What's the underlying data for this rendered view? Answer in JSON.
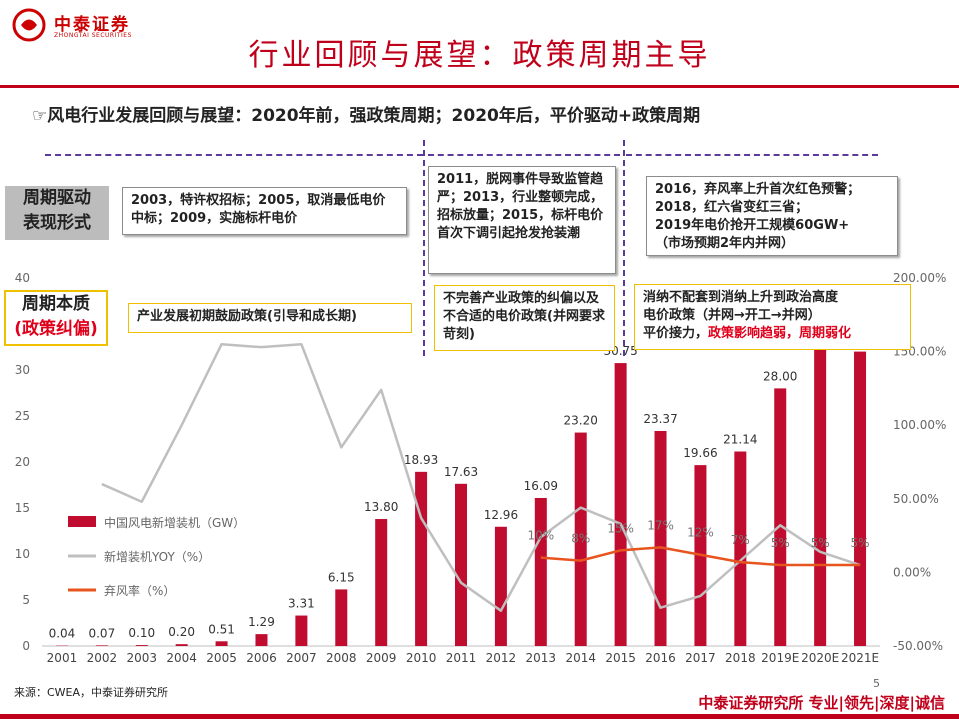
{
  "header": {
    "logo_cn": "中泰证券",
    "logo_en": "ZHONGTAI SECURITIES",
    "title": "行业回顾与展望：政策周期主导",
    "subtitle": "☞风电行业发展回顾与展望：2020年前，强政策周期；2020年后，平价驱动+政策周期"
  },
  "labels": {
    "driver": "周期驱动\n表现形式",
    "essence_1": "周期本质",
    "essence_2": "(政策纠偏)"
  },
  "boxes": {
    "driver_1": "2003，特许权招标；2005，取消最低电价中标；2009，实施标杆电价",
    "driver_2": "2011，脱网事件导致监管趋严；2013，行业整顿完成，招标放量；2015，标杆电价首次下调引起抢发抢装潮",
    "driver_3_a": "2016，弃风率上升首次红色预警；",
    "driver_3_b": "2018，红六省变红三省；",
    "driver_3_c": "2019年电价抢开工规模60GW+",
    "driver_3_d": "（市场预期2年内并网）",
    "essence_1": "产业发展初期鼓励政策(引导和成长期)",
    "essence_2": "不完善产业政策的纠偏以及不合适的电价政策(并网要求苛刻)",
    "essence_3_a": "消纳不配套到消纳上升到政治高度",
    "essence_3_b": "电价政策（并网→开工→并网）",
    "essence_3_c": "平价接力，",
    "essence_3_d": "政策影响趋弱，周期弱化"
  },
  "chart_data": {
    "type": "bar",
    "categories": [
      "2001",
      "2002",
      "2003",
      "2004",
      "2005",
      "2006",
      "2007",
      "2008",
      "2009",
      "2010",
      "2011",
      "2012",
      "2013",
      "2014",
      "2015",
      "2016",
      "2017",
      "2018",
      "2019E",
      "2020E",
      "2021E"
    ],
    "series": [
      {
        "name": "中国风电新增装机（GW）",
        "type": "bar",
        "axis": "left",
        "color": "#c00c2e",
        "values": [
          0.04,
          0.07,
          0.1,
          0.2,
          0.51,
          1.29,
          3.31,
          6.15,
          13.8,
          18.93,
          17.63,
          12.96,
          16.09,
          23.2,
          30.75,
          23.37,
          19.66,
          21.14,
          28.0,
          35.0,
          32.0
        ],
        "labels": [
          "0.04",
          "0.07",
          "0.10",
          "0.20",
          "0.51",
          "1.29",
          "3.31",
          "6.15",
          "13.80",
          "18.93",
          "17.63",
          "12.96",
          "16.09",
          "23.20",
          "30.75",
          "23.37",
          "19.66",
          "21.14",
          "28.00",
          "",
          ""
        ]
      },
      {
        "name": "新增装机YOY（%）",
        "type": "line",
        "axis": "right",
        "color": "#bfbfbf",
        "values": [
          null,
          60,
          48,
          100,
          155,
          153,
          155,
          85,
          124,
          37,
          -7,
          -26,
          24,
          44,
          33,
          -24,
          -16,
          8,
          32,
          14,
          5
        ]
      },
      {
        "name": "弃风率（%）",
        "type": "line",
        "axis": "right",
        "color": "#e8541e",
        "values": [
          null,
          null,
          null,
          null,
          null,
          null,
          null,
          null,
          null,
          null,
          null,
          null,
          10,
          8,
          15,
          17,
          12,
          7,
          5,
          5,
          5
        ],
        "labels": [
          "",
          "",
          "",
          "",
          "",
          "",
          "",
          "",
          "",
          "",
          "",
          "",
          "10%",
          "8%",
          "15%",
          "17%",
          "12%",
          "7%",
          "5%",
          "5%",
          "5%"
        ]
      }
    ],
    "ylim": [
      0,
      40
    ],
    "yticks": [
      "0",
      "5",
      "10",
      "15",
      "20",
      "25",
      "30",
      "35",
      "40"
    ],
    "y2lim": [
      -50,
      200
    ],
    "y2ticks": [
      "-50.00%",
      "0.00%",
      "50.00%",
      "100.00%",
      "150.00%",
      "200.00%"
    ],
    "legend": "left-middle"
  },
  "footer": {
    "source": "来源：CWEA，中泰证券研究所",
    "page": "5",
    "brand": "中泰证券研究所 专业|领先|深度|诚信"
  }
}
